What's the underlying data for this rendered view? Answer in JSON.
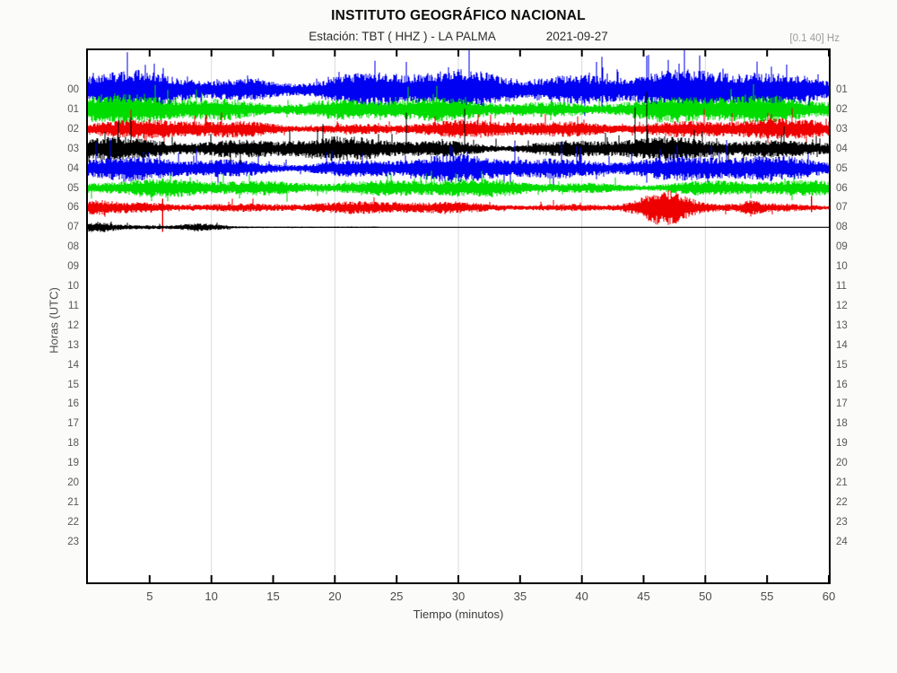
{
  "header": {
    "title": "INSTITUTO GEOGRÁFICO NACIONAL",
    "station_label": "Estación:  TBT ( HHZ ) - LA PALMA",
    "date": "2021-09-27",
    "filter": "[0.1 40] Hz"
  },
  "axes": {
    "y_label": "Horas (UTC)",
    "x_label": "Tiempo (minutos)",
    "left_hour_ticks": [
      "00",
      "01",
      "02",
      "03",
      "04",
      "05",
      "06",
      "07",
      "08",
      "09",
      "10",
      "11",
      "12",
      "13",
      "14",
      "15",
      "16",
      "17",
      "18",
      "19",
      "20",
      "21",
      "22",
      "23"
    ],
    "right_hour_ticks": [
      "01",
      "02",
      "03",
      "04",
      "05",
      "06",
      "07",
      "08",
      "09",
      "10",
      "11",
      "12",
      "13",
      "14",
      "15",
      "16",
      "17",
      "18",
      "19",
      "20",
      "21",
      "22",
      "23",
      "24"
    ],
    "x_tick_labels": [
      "5",
      "10",
      "15",
      "20",
      "25",
      "30",
      "35",
      "40",
      "45",
      "50",
      "55",
      "60"
    ]
  },
  "chart_data": {
    "type": "line",
    "subtype": "helicorder-seismogram",
    "title": "INSTITUTO GEOGRÁFICO NACIONAL — Estación TBT (HHZ) - LA PALMA — 2021-09-27",
    "xlabel": "Tiempo (minutos)",
    "ylabel": "Horas (UTC)",
    "x_range_minutes": [
      0,
      60
    ],
    "x_ticks_min": [
      5,
      10,
      15,
      20,
      25,
      30,
      35,
      40,
      45,
      50,
      55,
      60
    ],
    "x_gridlines_min": [
      10,
      20,
      30,
      40,
      50
    ],
    "hours_with_signal": [
      "00",
      "01",
      "02",
      "03",
      "04",
      "05",
      "06",
      "07"
    ],
    "hours_empty": [
      "08",
      "09",
      "10",
      "11",
      "12",
      "13",
      "14",
      "15",
      "16",
      "17",
      "18",
      "19",
      "20",
      "21",
      "22",
      "23"
    ],
    "grid_color": "#d9d9d9",
    "rows": [
      {
        "hour": 0,
        "label": "00",
        "color": "#0000f2",
        "base_amp": 22,
        "spike_prob": 0.035,
        "spike_mult": 2.1,
        "rare_prob": 0.003,
        "rare_mult": 2.6,
        "start_min": 0,
        "end_min": 60,
        "seed": 101
      },
      {
        "hour": 1,
        "label": "01",
        "color": "#00dc00",
        "base_amp": 15,
        "spike_prob": 0.03,
        "spike_mult": 2.0,
        "rare_prob": 0.002,
        "rare_mult": 2.6,
        "start_min": 0,
        "end_min": 60,
        "seed": 202
      },
      {
        "hour": 2,
        "label": "02",
        "color": "#ee0000",
        "base_amp": 10.5,
        "spike_prob": 0.035,
        "spike_mult": 2.1,
        "rare_prob": 0.002,
        "rare_mult": 2.8,
        "start_min": 0,
        "end_min": 60,
        "seed": 303
      },
      {
        "hour": 3,
        "label": "03",
        "color": "#000000",
        "base_amp": 13,
        "spike_prob": 0.045,
        "spike_mult": 2.2,
        "rare_prob": 0.004,
        "rare_mult": 6.5,
        "start_min": 0,
        "end_min": 60,
        "seed": 404
      },
      {
        "hour": 4,
        "label": "04",
        "color": "#0000f2",
        "base_amp": 14,
        "spike_prob": 0.05,
        "spike_mult": 2.3,
        "rare_prob": 0.003,
        "rare_mult": 3.0,
        "start_min": 0,
        "end_min": 60,
        "seed": 505
      },
      {
        "hour": 5,
        "label": "05",
        "color": "#00dc00",
        "base_amp": 10,
        "spike_prob": 0.035,
        "spike_mult": 2.1,
        "rare_prob": 0.002,
        "rare_mult": 2.6,
        "start_min": 0,
        "end_min": 60,
        "seed": 606
      },
      {
        "hour": 6,
        "label": "06",
        "color": "#ee0000",
        "base_amp": 6.5,
        "spike_prob": 0.025,
        "spike_mult": 2.0,
        "rare_prob": 0.001,
        "rare_mult": 2.5,
        "start_min": 0,
        "end_min": 60,
        "seed": 707,
        "bursts": [
          {
            "min": 46.6,
            "sigma": 1.5,
            "amp": 13
          },
          {
            "min": 53.6,
            "sigma": 0.7,
            "amp": 3.5
          },
          {
            "min": 0.8,
            "sigma": 0.8,
            "amp": 3
          }
        ],
        "events": [
          {
            "min": 6.05,
            "up": 10,
            "down": 27
          },
          {
            "min": 58.6,
            "up": 13,
            "down": 5
          }
        ]
      },
      {
        "hour": 7,
        "label": "07",
        "color": "#000000",
        "base_amp": 3.4,
        "decay_per_min": 0.105,
        "min_amp": 0.7,
        "spike_prob": 0.02,
        "spike_mult": 1.8,
        "rare_prob": 0,
        "rare_mult": 1,
        "start_min": 0,
        "end_min": 23.5,
        "flat_to_min": 60,
        "seed": 808,
        "bursts": [
          {
            "min": 0.9,
            "sigma": 0.9,
            "amp": 2.6
          },
          {
            "min": 9.2,
            "sigma": 1.4,
            "amp": 2.8
          }
        ]
      }
    ]
  }
}
